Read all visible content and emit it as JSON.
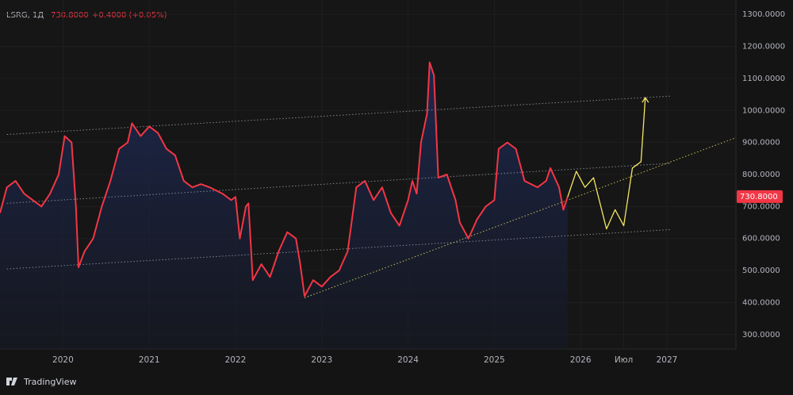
{
  "chart_data": {
    "type": "line",
    "title": "LSRG, 1Д",
    "last_price": 730.8,
    "last_price_label": "730.8000",
    "change_label": "+0.4000 (+0.05%)",
    "brand": "TradingView",
    "xlim": [
      2019.27,
      2027.8
    ],
    "ylim": [
      255,
      1345
    ],
    "xticks": [
      2020,
      2021,
      2022,
      2023,
      2024,
      2025,
      2026,
      {
        "value": 2026.5,
        "label": "Июл"
      },
      2027
    ],
    "yticks": [
      {
        "value": 300,
        "label": "300.0000"
      },
      {
        "value": 400,
        "label": "400.0000"
      },
      {
        "value": 500,
        "label": "500.0000"
      },
      {
        "value": 600,
        "label": "600.0000"
      },
      {
        "value": 700,
        "label": "700.0000"
      },
      {
        "value": 800,
        "label": "800.0000"
      },
      {
        "value": 900,
        "label": "900.0000"
      },
      {
        "value": 1000,
        "label": "1000.0000"
      },
      {
        "value": 1100,
        "label": "1100.0000"
      },
      {
        "value": 1200,
        "label": "1200.0000"
      },
      {
        "value": 1300,
        "label": "1300.0000"
      }
    ],
    "series": [
      {
        "color": "#f23645",
        "x": [
          2019.27,
          2019.35,
          2019.45,
          2019.55,
          2019.65,
          2019.75,
          2019.85,
          2019.95,
          2020.02,
          2020.1,
          2020.15,
          2020.18,
          2020.25,
          2020.35,
          2020.45,
          2020.55,
          2020.65,
          2020.75,
          2020.8,
          2020.9,
          2021.0,
          2021.1,
          2021.2,
          2021.3,
          2021.4,
          2021.5,
          2021.6,
          2021.7,
          2021.85,
          2021.95,
          2022.0,
          2022.05,
          2022.12,
          2022.15,
          2022.2,
          2022.3,
          2022.4,
          2022.5,
          2022.6,
          2022.7,
          2022.75,
          2022.8,
          2022.9,
          2023.0,
          2023.1,
          2023.2,
          2023.3,
          2023.35,
          2023.4,
          2023.5,
          2023.6,
          2023.7,
          2023.8,
          2023.9,
          2024.0,
          2024.05,
          2024.1,
          2024.15,
          2024.22,
          2024.25,
          2024.3,
          2024.35,
          2024.45,
          2024.55,
          2024.6,
          2024.7,
          2024.8,
          2024.9,
          2025.0,
          2025.05,
          2025.15,
          2025.25,
          2025.35,
          2025.5,
          2025.6,
          2025.65,
          2025.75,
          2025.8,
          2025.85
        ],
        "values": [
          680,
          760,
          780,
          740,
          720,
          700,
          740,
          800,
          920,
          900,
          700,
          510,
          560,
          600,
          700,
          780,
          880,
          900,
          960,
          920,
          950,
          930,
          880,
          860,
          780,
          760,
          770,
          760,
          740,
          720,
          730,
          600,
          700,
          710,
          470,
          520,
          480,
          560,
          620,
          600,
          520,
          420,
          470,
          450,
          480,
          500,
          560,
          660,
          760,
          780,
          720,
          760,
          680,
          640,
          720,
          780,
          740,
          900,
          990,
          1150,
          1110,
          790,
          800,
          720,
          650,
          600,
          660,
          700,
          720,
          880,
          900,
          880,
          780,
          760,
          780,
          820,
          760,
          690,
          730.8
        ]
      },
      {
        "color": "#f5e663",
        "x": [
          2025.85,
          2025.95,
          2026.05,
          2026.15,
          2026.3,
          2026.4,
          2026.5,
          2026.6,
          2026.7,
          2026.75
        ],
        "values": [
          730,
          810,
          760,
          790,
          630,
          690,
          640,
          820,
          840,
          1040
        ]
      }
    ],
    "lines": [
      {
        "color": "#9aa0ab",
        "x": [
          2019.35,
          2027.05
        ],
        "values": [
          925,
          1045
        ]
      },
      {
        "color": "#9aa0ab",
        "x": [
          2019.35,
          2027.05
        ],
        "values": [
          710,
          835
        ]
      },
      {
        "color": "#9aa0ab",
        "x": [
          2019.35,
          2027.05
        ],
        "values": [
          505,
          628
        ]
      },
      {
        "color": "#f5e663",
        "x": [
          2022.8,
          2027.8
        ],
        "values": [
          415,
          915
        ]
      }
    ]
  }
}
